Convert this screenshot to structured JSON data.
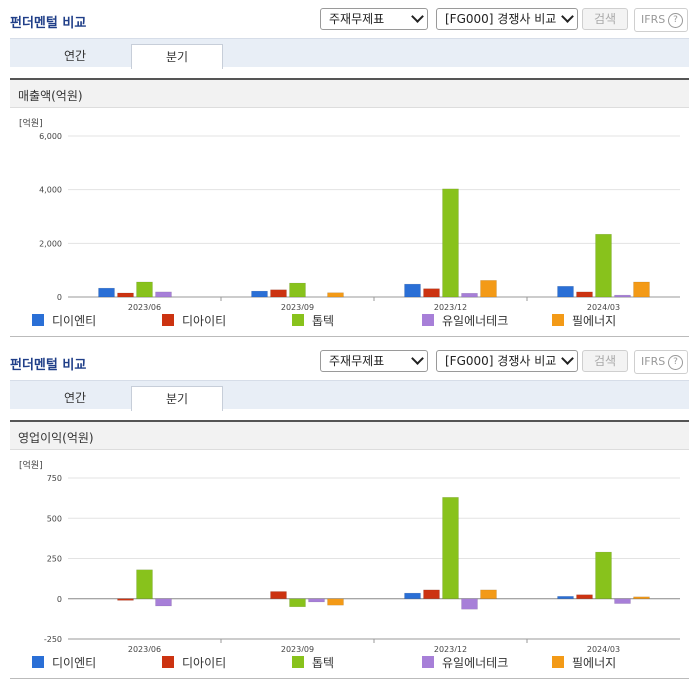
{
  "panels": [
    {
      "title": "펀더멘털 비교",
      "select_report": "주재무제표",
      "select_compare": "[FG000] 경쟁사 비교",
      "search_label": "검색",
      "ifrs_label": "IFRS",
      "help_glyph": "?",
      "tabs": [
        {
          "label": "연간",
          "active": false
        },
        {
          "label": "분기",
          "active": true
        }
      ],
      "section_title": "매출액(억원)",
      "unit_label": "[억원]"
    },
    {
      "title": "펀더멘털 비교",
      "select_report": "주재무제표",
      "select_compare": "[FG000] 경쟁사 비교",
      "search_label": "검색",
      "ifrs_label": "IFRS",
      "help_glyph": "?",
      "tabs": [
        {
          "label": "연간",
          "active": false
        },
        {
          "label": "분기",
          "active": true
        }
      ],
      "section_title": "영업이익(억원)",
      "unit_label": "[억원]"
    }
  ],
  "colors": {
    "디이엔티": "#2a6fd6",
    "디아이티": "#cc3311",
    "톱텍": "#88c21c",
    "유일에너테크": "#a77fd8",
    "필에너지": "#f39a17"
  },
  "chart_data": [
    {
      "type": "bar",
      "categories": [
        "2023/06",
        "2023/09",
        "2023/12",
        "2024/03"
      ],
      "ylim": [
        0,
        6000
      ],
      "yticks": [
        "0",
        "2,000",
        "4,000",
        "6,000"
      ],
      "ytick_values": [
        0,
        2000,
        4000,
        6000
      ],
      "series": [
        {
          "name": "디이엔티",
          "values": [
            330,
            220,
            480,
            400
          ]
        },
        {
          "name": "디아이티",
          "values": [
            150,
            270,
            310,
            190
          ]
        },
        {
          "name": "톱텍",
          "values": [
            560,
            520,
            4030,
            2340
          ]
        },
        {
          "name": "유일에너테크",
          "values": [
            190,
            0,
            140,
            70
          ]
        },
        {
          "name": "필에너지",
          "values": [
            0,
            160,
            620,
            560
          ]
        }
      ]
    },
    {
      "type": "bar",
      "categories": [
        "2023/06",
        "2023/09",
        "2023/12",
        "2024/03"
      ],
      "ylim": [
        -250,
        750
      ],
      "yticks": [
        "-250",
        "0",
        "250",
        "500",
        "750"
      ],
      "ytick_values": [
        -250,
        0,
        250,
        500,
        750
      ],
      "series": [
        {
          "name": "디이엔티",
          "values": [
            0,
            0,
            35,
            15
          ]
        },
        {
          "name": "디아이티",
          "values": [
            -10,
            45,
            55,
            25
          ]
        },
        {
          "name": "톱텍",
          "values": [
            180,
            -50,
            630,
            290
          ]
        },
        {
          "name": "유일에너테크",
          "values": [
            -45,
            -20,
            -65,
            -30
          ]
        },
        {
          "name": "필에너지",
          "values": [
            0,
            -40,
            55,
            12
          ]
        }
      ]
    }
  ]
}
